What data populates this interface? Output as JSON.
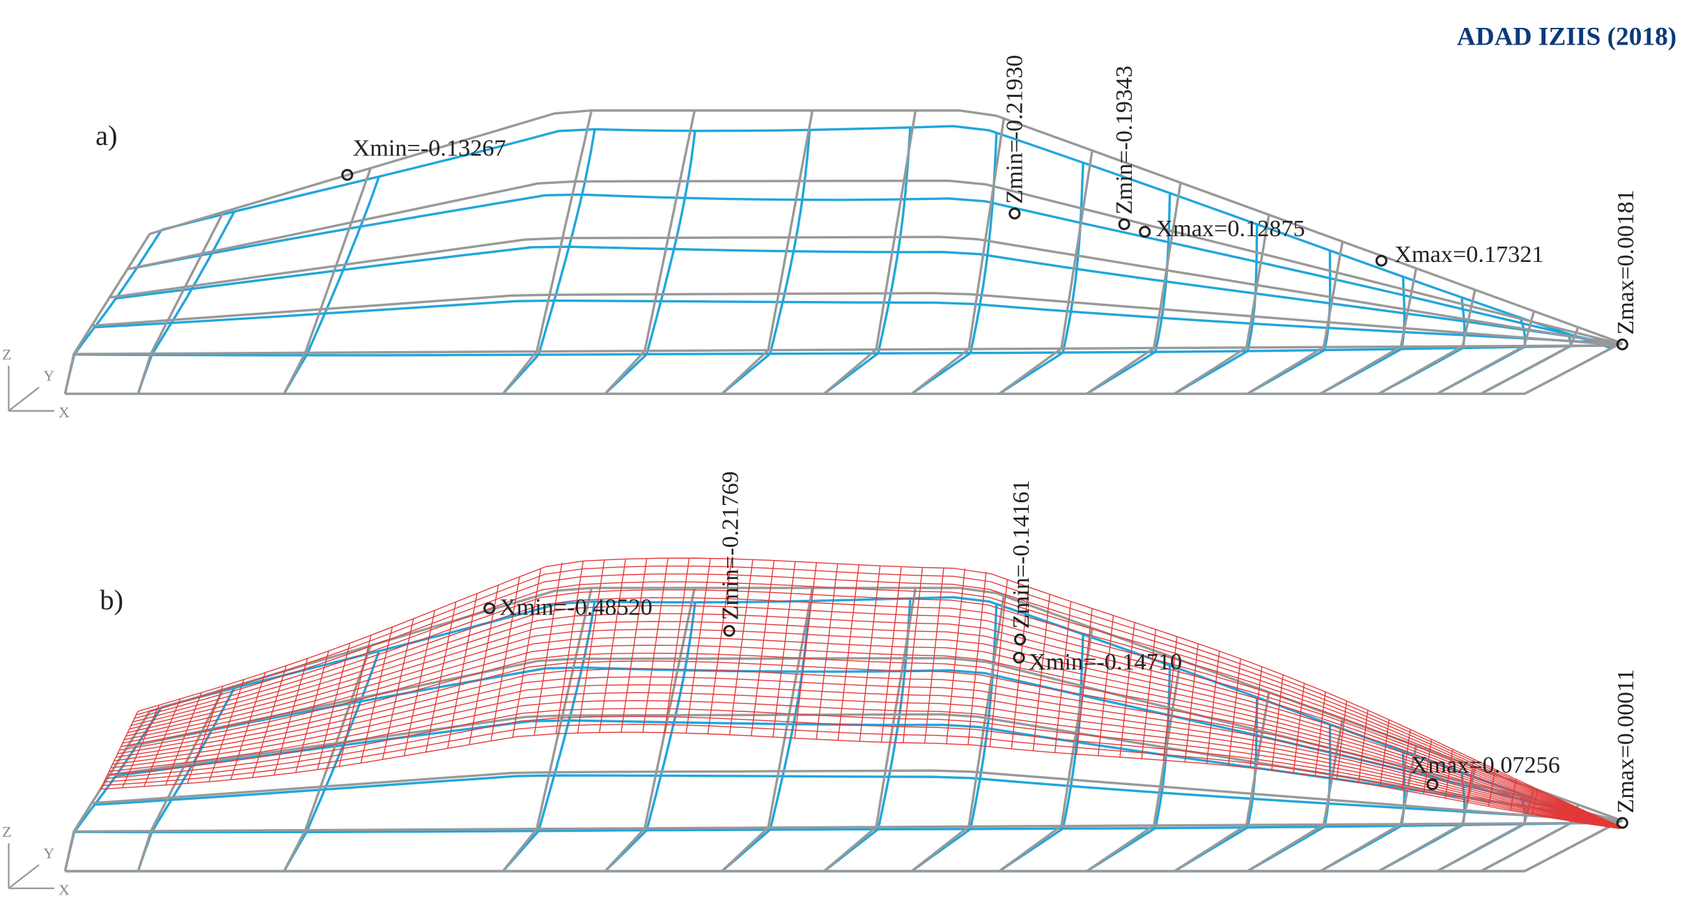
{
  "header": {
    "title": "ADAD IZIIS (2018)"
  },
  "panels": [
    {
      "label": "a)",
      "axes": [
        "Z",
        "Y",
        "X"
      ],
      "annotations": [
        "Xmin=-0.13267",
        "Zmin=-0.21930",
        "Zmin=-0.19343",
        "Xmax=0.12875",
        "Xmax=0.17321",
        "Zmax=0.00181"
      ]
    },
    {
      "label": "b)",
      "axes": [
        "Z",
        "Y",
        "X"
      ],
      "annotations": [
        "Xmin=-0.48520",
        "Zmin=-0.21769",
        "Zmin=-0.14161",
        "Xmin=-0.14710",
        "Xmax=0.07256",
        "Zmax=0.00011"
      ]
    }
  ]
}
